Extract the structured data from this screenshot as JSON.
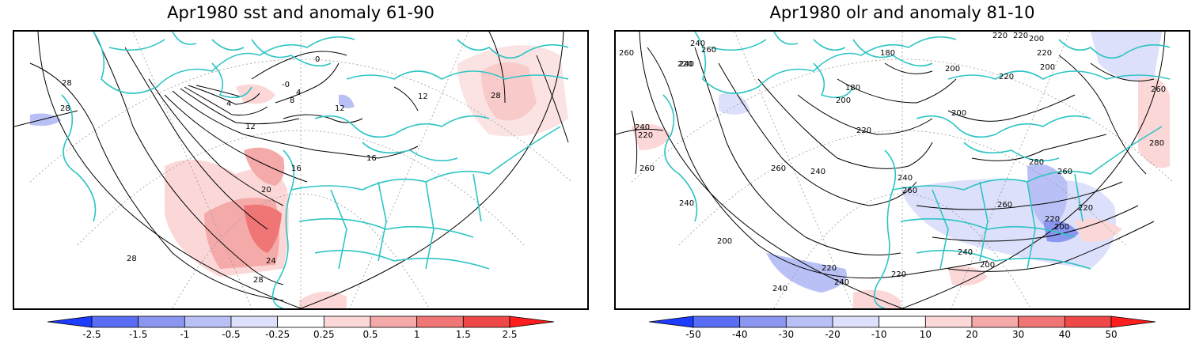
{
  "panels": [
    {
      "title": "Apr1980 sst and anomaly 61-90",
      "contour_labels": [
        "28",
        "28",
        "0",
        "-0",
        "4",
        "8",
        "4",
        "12",
        "12",
        "16",
        "16",
        "20",
        "24",
        "28",
        "28",
        "12",
        "28"
      ],
      "colorbar": {
        "labels": [
          "-2.5",
          "-1.5",
          "-1",
          "-0.5",
          "-0.25",
          "0.25",
          "0.5",
          "1",
          "1.5",
          "2.5"
        ],
        "colors": [
          "#1e3cff",
          "#5a6ef5",
          "#8a96f0",
          "#b9c0f5",
          "#dde0fa",
          "#ffffff",
          "#fbd7d7",
          "#f5aaaa",
          "#f07676",
          "#f04848",
          "#ff1e1e"
        ]
      }
    },
    {
      "title": "Apr1980 olr and anomaly 81-10",
      "contour_labels": [
        "260",
        "240",
        "260",
        "220",
        "180",
        "220",
        "200",
        "220",
        "240",
        "200",
        "220",
        "180",
        "200",
        "220",
        "200",
        "260",
        "240",
        "220",
        "220",
        "200",
        "260",
        "240",
        "240",
        "260",
        "280",
        "260",
        "220",
        "260",
        "280",
        "220",
        "200",
        "240",
        "200",
        "260",
        "240",
        "220",
        "220",
        "240",
        "240",
        "200"
      ],
      "colorbar": {
        "labels": [
          "-50",
          "-40",
          "-30",
          "-20",
          "-10",
          "10",
          "20",
          "30",
          "40",
          "50"
        ],
        "colors": [
          "#1e3cff",
          "#5a6ef5",
          "#8a96f0",
          "#b9c0f5",
          "#dde0fa",
          "#ffffff",
          "#fbd7d7",
          "#f5aaaa",
          "#f07676",
          "#f04848",
          "#ff1e1e"
        ]
      }
    }
  ],
  "colors": {
    "coastline": "#2ec4c4",
    "contour": "#000000",
    "graticule": "#999999"
  }
}
